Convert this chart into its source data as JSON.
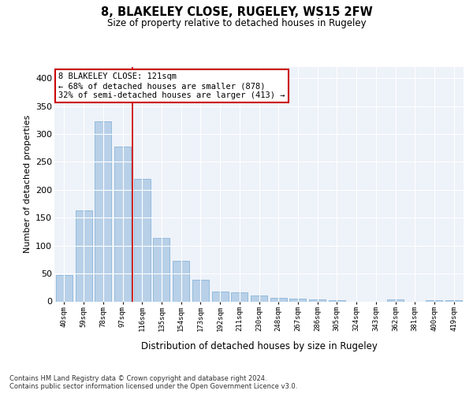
{
  "title1": "8, BLAKELEY CLOSE, RUGELEY, WS15 2FW",
  "title2": "Size of property relative to detached houses in Rugeley",
  "xlabel": "Distribution of detached houses by size in Rugeley",
  "ylabel": "Number of detached properties",
  "categories": [
    "40sqm",
    "59sqm",
    "78sqm",
    "97sqm",
    "116sqm",
    "135sqm",
    "154sqm",
    "173sqm",
    "192sqm",
    "211sqm",
    "230sqm",
    "248sqm",
    "267sqm",
    "286sqm",
    "305sqm",
    "324sqm",
    "343sqm",
    "362sqm",
    "381sqm",
    "400sqm",
    "419sqm"
  ],
  "values": [
    47,
    163,
    322,
    277,
    219,
    113,
    73,
    39,
    18,
    16,
    10,
    7,
    5,
    4,
    2,
    0,
    0,
    3,
    0,
    2,
    2
  ],
  "bar_color": "#b8d0e8",
  "bar_edge_color": "#7aadd4",
  "background_color": "#eef2f9",
  "grid_color": "#ffffff",
  "vline_x_index": 4,
  "vline_color": "#cc0000",
  "annotation_text": "8 BLAKELEY CLOSE: 121sqm\n← 68% of detached houses are smaller (878)\n32% of semi-detached houses are larger (413) →",
  "annotation_box_color": "#ffffff",
  "annotation_box_edge": "#cc0000",
  "footer": "Contains HM Land Registry data © Crown copyright and database right 2024.\nContains public sector information licensed under the Open Government Licence v3.0.",
  "ylim": [
    0,
    420
  ],
  "yticks": [
    0,
    50,
    100,
    150,
    200,
    250,
    300,
    350,
    400
  ]
}
